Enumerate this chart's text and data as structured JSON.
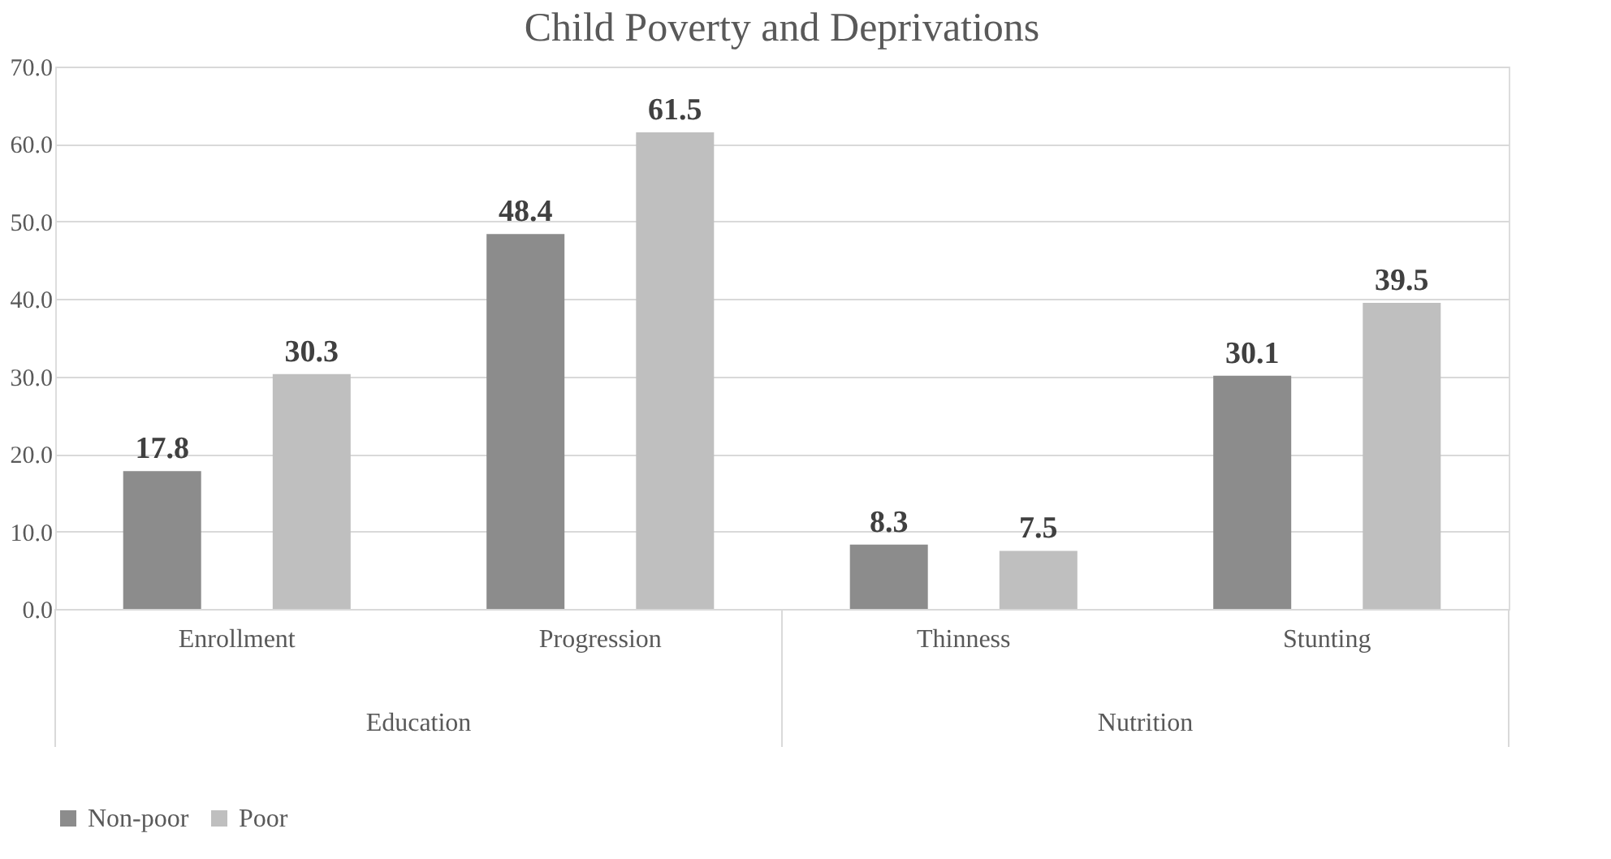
{
  "chart_data": {
    "type": "bar",
    "title": "Child Poverty and Deprivations",
    "categories": [
      "Enrollment",
      "Progression",
      "Thinness",
      "Stunting"
    ],
    "series": [
      {
        "name": "Non-poor",
        "color": "#8c8c8c",
        "values": [
          17.8,
          48.4,
          8.3,
          30.1
        ]
      },
      {
        "name": "Poor",
        "color": "#bfbfbf",
        "values": [
          30.3,
          61.5,
          7.5,
          39.5
        ]
      }
    ],
    "annotations": [
      "Education",
      "Nutrition"
    ],
    "ylim": [
      0,
      70
    ],
    "yticks": [
      {
        "value": 0,
        "label": "0.0"
      },
      {
        "value": 10,
        "label": "10.0"
      },
      {
        "value": 20,
        "label": "20.0"
      },
      {
        "value": 30,
        "label": "30.0"
      },
      {
        "value": 40,
        "label": "40.0"
      },
      {
        "value": 50,
        "label": "50.0"
      },
      {
        "value": 60,
        "label": "60.0"
      },
      {
        "value": 70,
        "label": "70.0"
      }
    ],
    "grid": "y",
    "legend": "bottom",
    "data_labels": true
  }
}
